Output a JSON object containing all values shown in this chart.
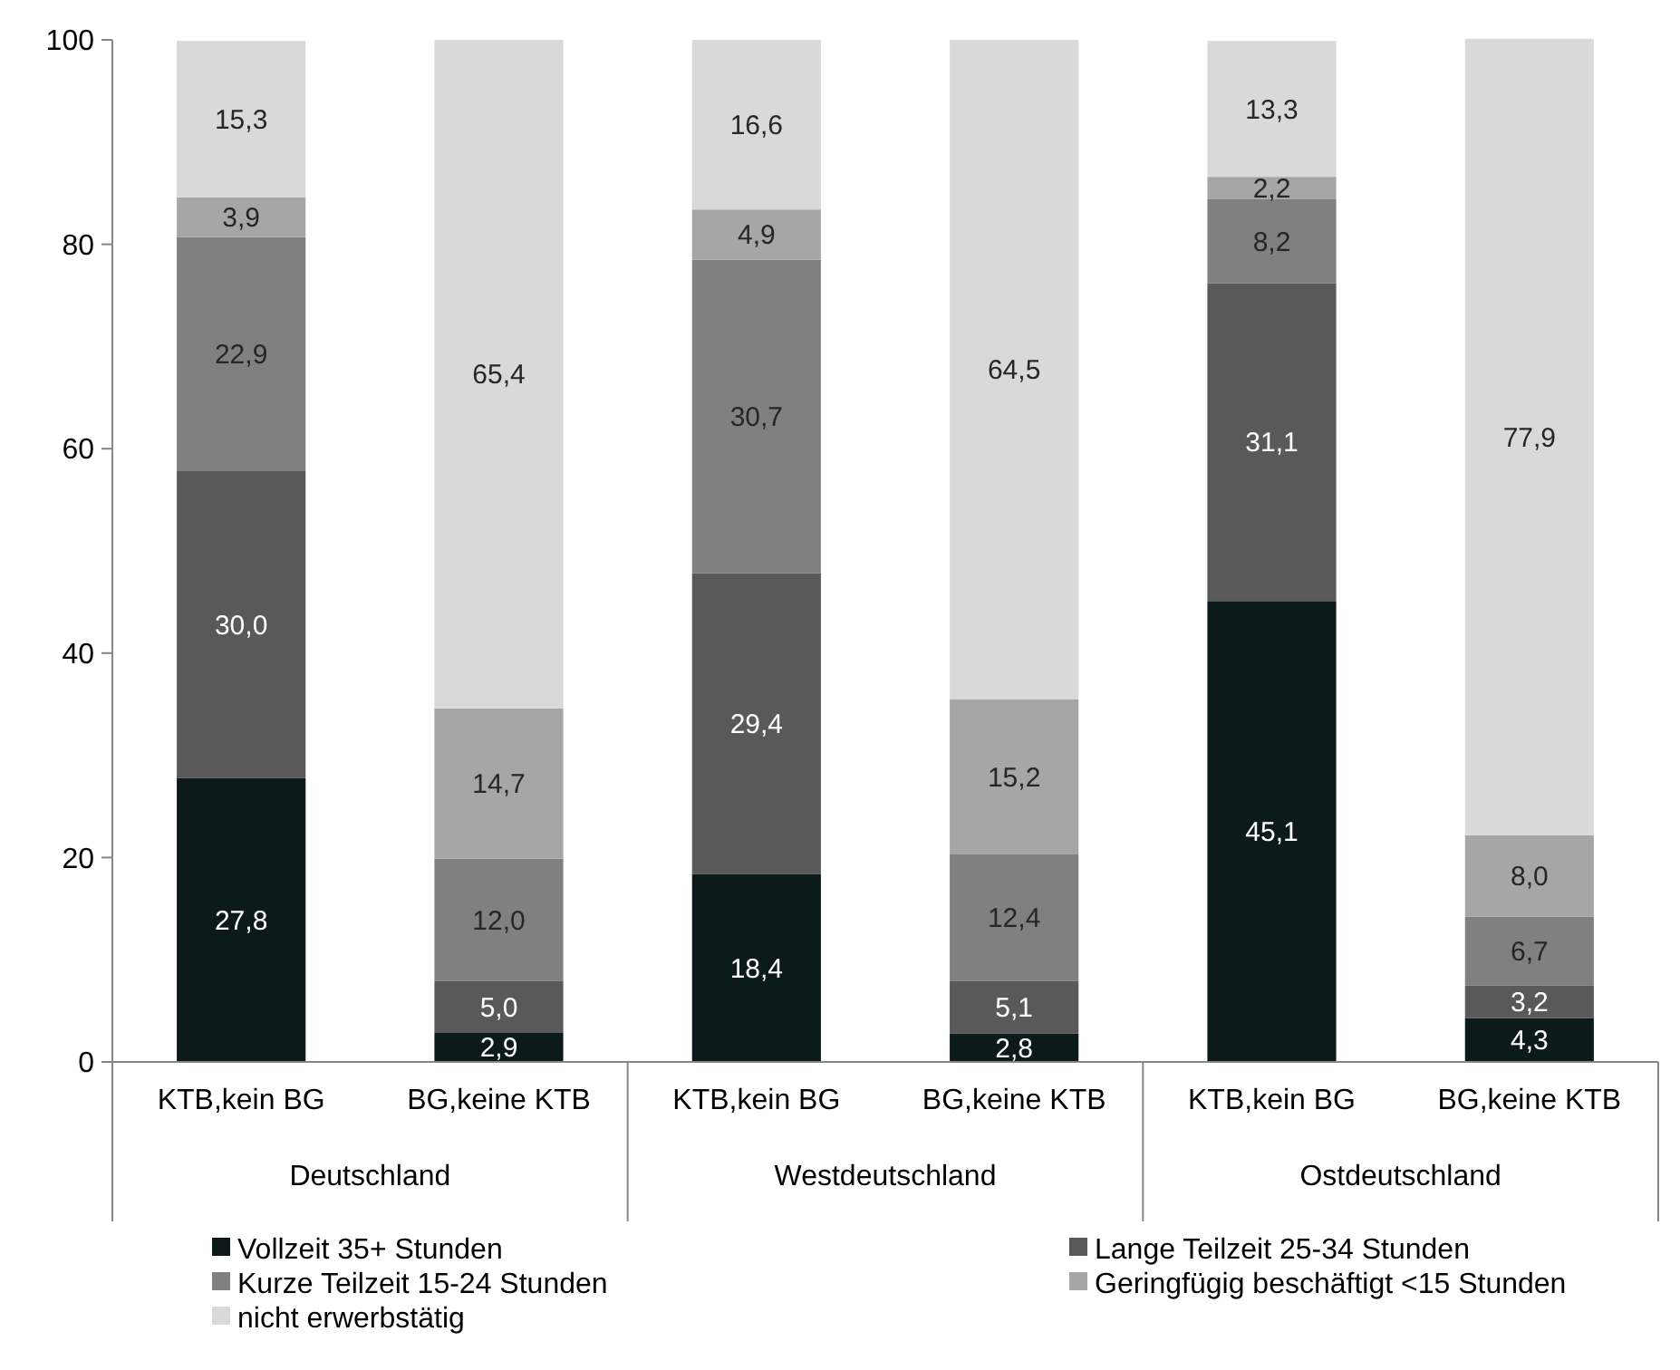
{
  "chart_data": {
    "type": "bar",
    "stacked": true,
    "categories": [
      "KTB,kein BG",
      "BG,keine KTB",
      "KTB,kein BG",
      "BG,keine KTB",
      "KTB,kein BG",
      "BG,keine KTB"
    ],
    "annotations": [
      "Deutschland",
      "Westdeutschland",
      "Ostdeutschland"
    ],
    "series": [
      {
        "name": "Vollzeit 35+ Stunden",
        "color": "#0d1a1c",
        "values": [
          27.8,
          2.9,
          18.4,
          2.8,
          45.1,
          4.3
        ],
        "value_labels": [
          "27,8",
          "2,9",
          "18,4",
          "2,8",
          "45,1",
          "4,3"
        ]
      },
      {
        "name": "Lange Teilzeit 25-34 Stunden",
        "color": "#595959",
        "values": [
          30.0,
          5.0,
          29.4,
          5.1,
          31.1,
          3.2
        ],
        "value_labels": [
          "30,0",
          "5,0",
          "29,4",
          "5,1",
          "31,1",
          "3,2"
        ]
      },
      {
        "name": "Kurze Teilzeit 15-24 Stunden",
        "color": "#808080",
        "values": [
          22.9,
          12.0,
          30.7,
          12.4,
          8.2,
          6.7
        ],
        "value_labels": [
          "22,9",
          "12,0",
          "30,7",
          "12,4",
          "8,2",
          "6,7"
        ]
      },
      {
        "name": "Geringfügig beschäftigt <15 Stunden",
        "color": "#a6a6a6",
        "values": [
          3.9,
          14.7,
          4.9,
          15.2,
          2.2,
          8.0
        ],
        "value_labels": [
          "3,9",
          "14,7",
          "4,9",
          "15,2",
          "2,2",
          "8,0"
        ]
      },
      {
        "name": "nicht erwerbstätig",
        "color": "#d9d9d9",
        "values": [
          15.3,
          65.4,
          16.6,
          64.5,
          13.3,
          77.9
        ],
        "value_labels": [
          "15,3",
          "65,4",
          "16,6",
          "64,5",
          "13,3",
          "77,9"
        ]
      }
    ],
    "ylim": [
      0,
      100
    ],
    "yticks": [
      0,
      20,
      40,
      60,
      80,
      100
    ],
    "grid": false,
    "legend": "bottom"
  }
}
